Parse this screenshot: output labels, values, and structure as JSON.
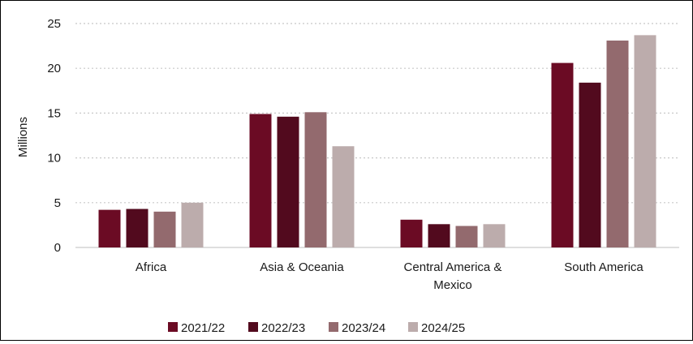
{
  "chart_data": {
    "type": "bar",
    "title": "",
    "xlabel": "",
    "ylabel": "Millions",
    "ylim": [
      0,
      25
    ],
    "yticks": [
      0,
      5,
      10,
      15,
      20,
      25
    ],
    "grid": true,
    "legend_position": "bottom",
    "categories": [
      [
        "Africa"
      ],
      [
        "Asia & Oceania"
      ],
      [
        "Central America &",
        "Mexico"
      ],
      [
        "South America"
      ]
    ],
    "series": [
      {
        "name": "2021/22",
        "color": "#6b0b24",
        "values": [
          4.2,
          14.9,
          3.1,
          20.6
        ]
      },
      {
        "name": "2022/23",
        "color": "#520a1e",
        "values": [
          4.3,
          14.6,
          2.6,
          18.4
        ]
      },
      {
        "name": "2023/24",
        "color": "#936a6e",
        "values": [
          4.0,
          15.1,
          2.4,
          23.1
        ]
      },
      {
        "name": "2024/25",
        "color": "#bcacac",
        "values": [
          5.0,
          11.3,
          2.6,
          23.7
        ]
      }
    ]
  }
}
